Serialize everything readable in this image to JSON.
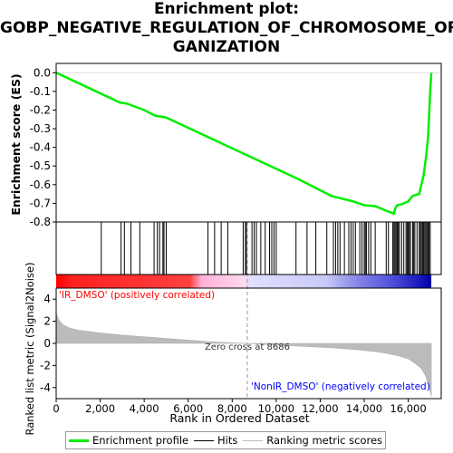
{
  "chart_data": {
    "type": "line",
    "title_lines": [
      "Enrichment plot:",
      "GOBP_NEGATIVE_REGULATION_OF_CHROMOSOME_OR",
      "GANIZATION"
    ],
    "top_panel": {
      "ylabel": "Enrichment score (ES)",
      "ylim": [
        -0.8,
        0.05
      ],
      "yticks": [
        0.0,
        -0.1,
        -0.2,
        -0.3,
        -0.4,
        -0.5,
        -0.6,
        -0.7,
        -0.8
      ],
      "ytick_labels": [
        "0.0",
        "-0.1",
        "-0.2",
        "-0.3",
        "-0.4",
        "-0.5",
        "-0.6",
        "-0.7",
        "-0.8"
      ],
      "es_curve": {
        "x": [
          0,
          2000,
          2900,
          3200,
          4000,
          4500,
          5000,
          7000,
          9000,
          11000,
          12500,
          13500,
          14000,
          14500,
          15000,
          15350,
          15400,
          15500,
          15700,
          16000,
          16200,
          16500,
          16700,
          16800,
          16900,
          17000,
          17050
        ],
        "y": [
          0.0,
          -0.11,
          -0.16,
          -0.165,
          -0.2,
          -0.23,
          -0.24,
          -0.35,
          -0.46,
          -0.57,
          -0.66,
          -0.69,
          -0.71,
          -0.715,
          -0.74,
          -0.755,
          -0.73,
          -0.71,
          -0.705,
          -0.69,
          -0.66,
          -0.65,
          -0.55,
          -0.46,
          -0.35,
          -0.1,
          0.0
        ]
      }
    },
    "hits": [
      2050,
      2950,
      3100,
      3400,
      3800,
      4450,
      4600,
      4700,
      4850,
      4900,
      5000,
      6900,
      7200,
      7500,
      7800,
      8500,
      8600,
      8650,
      8900,
      9000,
      9100,
      9300,
      9500,
      9700,
      9800,
      9900,
      10000,
      10900,
      11400,
      11800,
      12300,
      12600,
      12700,
      12800,
      12900,
      13100,
      13300,
      13400,
      13500,
      13600,
      13800,
      13900,
      14000,
      14050,
      14100,
      14200,
      14300,
      14500,
      15000,
      15100,
      15300,
      15350,
      15400,
      15450,
      15500,
      15550,
      15600,
      15700,
      15800,
      15900,
      15950,
      16000,
      16050,
      16100,
      16200,
      16250,
      16300,
      16400,
      16500,
      16550,
      16600,
      16650,
      16700,
      16750,
      16800,
      16850,
      16900,
      16950,
      17000
    ],
    "bottom_panel": {
      "ylabel": "Ranked list metric (Signal2Noise)",
      "ylim": [
        -5,
        5
      ],
      "yticks": [
        4,
        2,
        0,
        -2,
        -4
      ],
      "ytick_labels": [
        "4",
        "2",
        "0",
        "-2",
        "-4"
      ],
      "metric_curve": {
        "x": [
          0,
          100,
          300,
          600,
          1000,
          2000,
          3000,
          4000,
          5000,
          6000,
          7000,
          8000,
          8686,
          9500,
          10500,
          11500,
          12500,
          13500,
          14500,
          15000,
          15500,
          16000,
          16300,
          16600,
          16800,
          16950,
          17050
        ],
        "y": [
          2.8,
          2.2,
          1.7,
          1.4,
          1.2,
          0.95,
          0.75,
          0.6,
          0.45,
          0.3,
          0.15,
          0.05,
          0.0,
          -0.1,
          -0.2,
          -0.3,
          -0.4,
          -0.55,
          -0.75,
          -0.9,
          -1.1,
          -1.4,
          -1.8,
          -2.3,
          -3.0,
          -4.0,
          -4.8
        ]
      },
      "zero_cross_label": "Zero cross at 8686",
      "zero_cross": 8686,
      "pos_label": "'IR_DMSO' (positively correlated)",
      "neg_label": "'NonIR_DMSO' (negatively correlated)"
    },
    "xaxis": {
      "label": "Rank in Ordered Dataset",
      "xlim": [
        0,
        17500
      ],
      "ticks": [
        0,
        2000,
        4000,
        6000,
        8000,
        10000,
        12000,
        14000,
        16000
      ],
      "tick_labels": [
        "0",
        "2,000",
        "4,000",
        "6,000",
        "8,000",
        "10,000",
        "12,000",
        "14,000",
        "16,000"
      ]
    },
    "legend": {
      "items": [
        {
          "label": "Enrichment profile",
          "color": "#00ee00"
        },
        {
          "label": "Hits",
          "color": "#000000"
        },
        {
          "label": "Ranking metric scores",
          "color": "#bbbbbb"
        }
      ]
    },
    "colors": {
      "es": "#00ee00",
      "metric_fill": "#bbbbbb",
      "pos_text": "#ff0000",
      "neg_text": "#0000ff",
      "bar_red": "#ff0000",
      "bar_blue": "#0000ff"
    },
    "n_genes": 17050
  }
}
